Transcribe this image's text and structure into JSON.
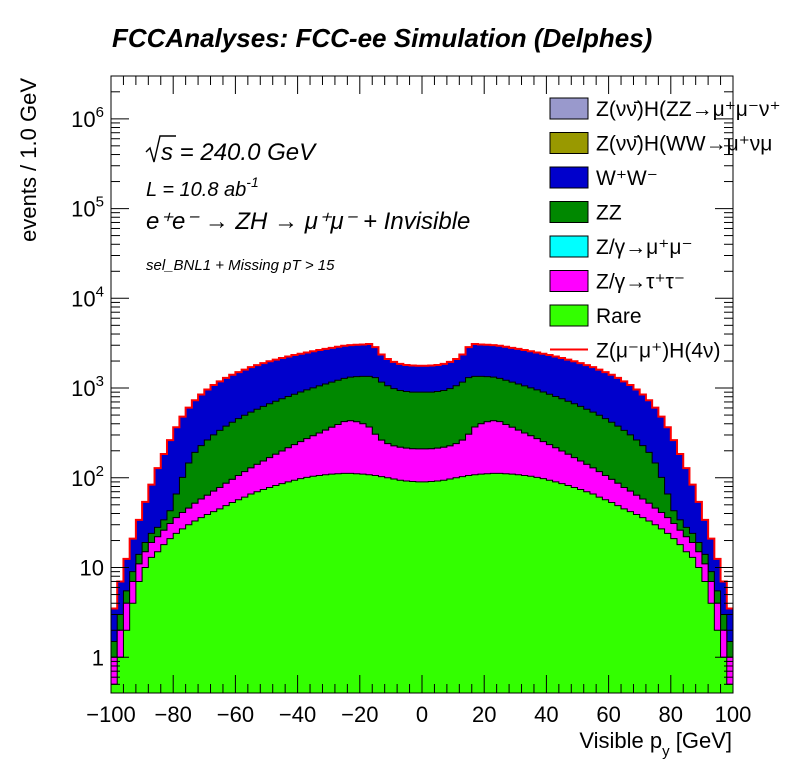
{
  "chart_data": {
    "type": "area",
    "stacked": true,
    "title": "FCCAnalyses: FCC-ee Simulation (Delphes)",
    "xlabel_main": "Visible p",
    "xlabel_sub": "y",
    "xlabel_unit": " [GeV]",
    "ylabel": "events / 1.0 GeV",
    "xlim": [
      -100,
      100
    ],
    "ylim": [
      0.4,
      3000000
    ],
    "log_y": true,
    "xticks": [
      -100,
      -80,
      -60,
      -40,
      -20,
      0,
      20,
      40,
      60,
      80,
      100
    ],
    "xtick_labels": [
      "−100",
      "−80",
      "−60",
      "−40",
      "−20",
      "0",
      "20",
      "40",
      "60",
      "80",
      "100"
    ],
    "yticks": [
      {
        "value": 1,
        "base": "1",
        "exp": ""
      },
      {
        "value": 10,
        "base": "10",
        "exp": ""
      },
      {
        "value": 100,
        "base": "10",
        "exp": "2"
      },
      {
        "value": 1000,
        "base": "10",
        "exp": "3"
      },
      {
        "value": 10000,
        "base": "10",
        "exp": "4"
      },
      {
        "value": 100000,
        "base": "10",
        "exp": "5"
      },
      {
        "value": 1000000,
        "base": "10",
        "exp": "6"
      }
    ],
    "annotations": {
      "sqrt_s": "s = 240.0 GeV",
      "lumi": "L = 10.8 ab",
      "lumi_exp": "-1",
      "process": "e⁺e⁻ → ZH → μ⁺μ⁻ + Invisible",
      "selection": "sel_BNL1 + Missing pT > 15"
    },
    "legend": [
      {
        "label": "Z(νν̄)H(ZZ→μ⁺μ⁻ν⁺",
        "color": "#9999cc",
        "kind": "box"
      },
      {
        "label": "Z(νν̄)H(WW→μ⁺νμ",
        "color": "#999900",
        "kind": "box"
      },
      {
        "label": "W⁺W⁻",
        "color": "#0000cc",
        "kind": "box"
      },
      {
        "label": "ZZ",
        "color": "#008800",
        "kind": "box"
      },
      {
        "label": "Z/γ→μ⁺μ⁻",
        "color": "#00ffff",
        "kind": "box"
      },
      {
        "label": "Z/γ→τ⁺τ⁻",
        "color": "#ff00ff",
        "kind": "box"
      },
      {
        "label": "Rare",
        "color": "#33ff00",
        "kind": "box"
      },
      {
        "label": "Z(μ⁻μ⁺)H(4ν)",
        "color": "#ff0000",
        "kind": "line"
      }
    ],
    "x": [
      -99,
      -97,
      -95,
      -93,
      -91,
      -89,
      -87,
      -85,
      -83,
      -81,
      -79,
      -77,
      -75,
      -73,
      -71,
      -69,
      -67,
      -65,
      -63,
      -61,
      -59,
      -57,
      -55,
      -53,
      -51,
      -49,
      -47,
      -45,
      -43,
      -41,
      -39,
      -37,
      -35,
      -33,
      -31,
      -29,
      -27,
      -25,
      -23,
      -21,
      -19,
      -17,
      -15,
      -13,
      -11,
      -9,
      -7,
      -5,
      -3,
      -1,
      1,
      3,
      5,
      7,
      9,
      11,
      13,
      15,
      17,
      19,
      21,
      23,
      25,
      27,
      29,
      31,
      33,
      35,
      37,
      39,
      41,
      43,
      45,
      47,
      49,
      51,
      53,
      55,
      57,
      59,
      61,
      63,
      65,
      67,
      69,
      71,
      73,
      75,
      77,
      79,
      81,
      83,
      85,
      87,
      89,
      91,
      93,
      95,
      97,
      99
    ],
    "series": [
      {
        "name": "Rare",
        "color": "#33ff00",
        "values": [
          0.5,
          1,
          2,
          4,
          7,
          10,
          13,
          15,
          18,
          21,
          24,
          27,
          30,
          33,
          36,
          39,
          42,
          45,
          49,
          53,
          57,
          61,
          66,
          70,
          74,
          78,
          82,
          86,
          90,
          94,
          98,
          101,
          104,
          106,
          108,
          110,
          111,
          112,
          112,
          111,
          110,
          108,
          106,
          103,
          100,
          97,
          94,
          92,
          91,
          90,
          90,
          91,
          92,
          94,
          97,
          100,
          103,
          106,
          108,
          110,
          111,
          112,
          112,
          111,
          110,
          108,
          106,
          104,
          101,
          98,
          94,
          90,
          86,
          82,
          78,
          74,
          70,
          66,
          61,
          57,
          53,
          49,
          45,
          42,
          39,
          36,
          33,
          30,
          27,
          24,
          21,
          18,
          15,
          13,
          10,
          7,
          4,
          2,
          1,
          0.5
        ]
      },
      {
        "name": "Z/γ→τ⁺τ⁻",
        "color": "#ff00ff",
        "values": [
          0.5,
          1,
          2,
          3,
          4,
          5,
          6,
          7,
          8,
          10,
          12,
          14,
          16,
          19,
          22,
          25,
          29,
          33,
          38,
          43,
          49,
          56,
          63,
          71,
          80,
          90,
          101,
          113,
          126,
          140,
          155,
          172,
          190,
          210,
          232,
          256,
          282,
          310,
          320,
          310,
          290,
          260,
          200,
          160,
          140,
          130,
          125,
          122,
          120,
          120,
          120,
          120,
          122,
          125,
          130,
          140,
          160,
          200,
          260,
          290,
          310,
          320,
          310,
          282,
          256,
          232,
          210,
          190,
          172,
          155,
          140,
          126,
          113,
          101,
          90,
          80,
          71,
          63,
          56,
          49,
          43,
          38,
          33,
          29,
          25,
          22,
          19,
          16,
          14,
          12,
          10,
          8,
          7,
          6,
          5,
          4,
          3,
          2,
          1,
          0.5
        ]
      },
      {
        "name": "Z/γ→μ⁺μ⁻",
        "color": "#00ffff",
        "values": [
          0,
          0,
          0,
          0,
          0,
          0,
          0,
          0,
          0,
          0,
          0,
          0,
          0,
          0,
          0,
          0,
          0,
          0,
          0,
          0,
          0,
          0,
          0,
          0,
          0,
          0,
          0,
          0,
          0,
          0,
          0,
          0,
          0,
          0,
          0,
          0,
          0,
          0,
          0,
          0,
          0,
          0,
          0,
          0,
          0,
          0,
          0,
          0,
          0,
          0,
          0,
          0,
          0,
          0,
          0,
          0,
          0,
          0,
          0,
          0,
          0,
          0,
          0,
          0,
          0,
          0,
          0,
          0,
          0,
          0,
          0,
          0,
          0,
          0,
          0,
          0,
          0,
          0,
          0,
          0,
          0,
          0,
          0,
          0,
          0,
          0,
          0,
          0,
          0,
          0,
          0,
          0,
          0,
          0,
          0,
          0,
          0,
          0,
          0,
          0
        ]
      },
      {
        "name": "ZZ",
        "color": "#008800",
        "values": [
          0.5,
          1,
          1.5,
          2,
          3,
          4,
          5,
          6,
          8,
          12,
          30,
          60,
          100,
          140,
          170,
          200,
          230,
          260,
          290,
          320,
          350,
          380,
          410,
          440,
          470,
          500,
          530,
          560,
          590,
          620,
          650,
          680,
          710,
          740,
          770,
          800,
          830,
          860,
          890,
          920,
          950,
          980,
          1000,
          900,
          820,
          760,
          720,
          700,
          690,
          690,
          690,
          690,
          700,
          720,
          760,
          820,
          900,
          1000,
          980,
          950,
          920,
          890,
          860,
          830,
          800,
          770,
          740,
          710,
          680,
          650,
          620,
          590,
          560,
          530,
          500,
          470,
          440,
          410,
          380,
          350,
          320,
          290,
          260,
          230,
          200,
          170,
          140,
          100,
          60,
          30,
          12,
          8,
          6,
          5,
          4,
          3,
          2,
          1.5,
          1,
          0.5
        ]
      },
      {
        "name": "W⁺W⁻",
        "color": "#0000cc",
        "values": [
          2,
          4,
          7,
          12,
          20,
          35,
          60,
          100,
          150,
          220,
          300,
          380,
          460,
          540,
          620,
          700,
          780,
          850,
          920,
          990,
          1050,
          1110,
          1170,
          1220,
          1270,
          1320,
          1360,
          1400,
          1440,
          1480,
          1510,
          1540,
          1570,
          1600,
          1620,
          1640,
          1660,
          1680,
          1690,
          1700,
          1710,
          1750,
          1550,
          1200,
          1050,
          970,
          920,
          890,
          880,
          870,
          870,
          880,
          890,
          920,
          970,
          1050,
          1200,
          1550,
          1750,
          1710,
          1700,
          1690,
          1680,
          1660,
          1640,
          1620,
          1600,
          1570,
          1540,
          1510,
          1480,
          1440,
          1400,
          1360,
          1320,
          1270,
          1220,
          1170,
          1110,
          1050,
          990,
          920,
          850,
          780,
          700,
          620,
          540,
          460,
          380,
          300,
          220,
          150,
          100,
          60,
          35,
          20,
          12,
          7,
          4,
          2
        ]
      },
      {
        "name": "Z(νν̄)H(WW→μ⁺νμ",
        "color": "#999900",
        "values": [
          0,
          0,
          0,
          0,
          0,
          0,
          0,
          0,
          0,
          0,
          0,
          0,
          0,
          0,
          0,
          0,
          0,
          0,
          0,
          0,
          0,
          0,
          0,
          0,
          0,
          0,
          0,
          0,
          0,
          0,
          0,
          0,
          0,
          0,
          0,
          0,
          0,
          0,
          0,
          0,
          0,
          0,
          0,
          0,
          0,
          0,
          0,
          0,
          0,
          0,
          0,
          0,
          0,
          0,
          0,
          0,
          0,
          0,
          0,
          0,
          0,
          0,
          0,
          0,
          0,
          0,
          0,
          0,
          0,
          0,
          0,
          0,
          0,
          0,
          0,
          0,
          0,
          0,
          0,
          0,
          0,
          0,
          0,
          0,
          0,
          0,
          0,
          0,
          0,
          0,
          0,
          0,
          0,
          0,
          0,
          0,
          0,
          0,
          0,
          0
        ]
      },
      {
        "name": "Z(νν̄)H(ZZ→μ⁺μ⁻ν⁺",
        "color": "#9999cc",
        "values": [
          0,
          0,
          0,
          0,
          0,
          0,
          0,
          0,
          0,
          0,
          0,
          0,
          0,
          0,
          0,
          0,
          0,
          0,
          0,
          0,
          0,
          0,
          0,
          0,
          0,
          0,
          0,
          0,
          0,
          0,
          0,
          0,
          0,
          0,
          0,
          0,
          0,
          0,
          0,
          0,
          0,
          0,
          0,
          0,
          0,
          0,
          0,
          0,
          0,
          0,
          0,
          0,
          0,
          0,
          0,
          0,
          0,
          0,
          0,
          0,
          0,
          0,
          0,
          0,
          0,
          0,
          0,
          0,
          0,
          0,
          0,
          0,
          0,
          0,
          0,
          0,
          0,
          0,
          0,
          0,
          0,
          0,
          0,
          0,
          0,
          0,
          0,
          0,
          0,
          0,
          0,
          0,
          0,
          0,
          0,
          0,
          0,
          0,
          0,
          0
        ]
      },
      {
        "name": "Z(μ⁻μ⁺)H(4ν)",
        "color": "#ff0000",
        "values": [
          0,
          0,
          0,
          0,
          0,
          0,
          0,
          0,
          0,
          0,
          0,
          0,
          0,
          0,
          0,
          0,
          0,
          0,
          0,
          0,
          0,
          0,
          0,
          0,
          0,
          0,
          0,
          0,
          0,
          0,
          0,
          0,
          0,
          0,
          0,
          0,
          0,
          0,
          0,
          0,
          0,
          0,
          0,
          0,
          0,
          0,
          0,
          0,
          0,
          0,
          0,
          0,
          0,
          0,
          0,
          0,
          0,
          0,
          0,
          0,
          0,
          0,
          0,
          0,
          0,
          0,
          0,
          0,
          0,
          0,
          0,
          0,
          0,
          0,
          0,
          0,
          0,
          0,
          0,
          0,
          0,
          0,
          0,
          0,
          0,
          0,
          0,
          0,
          0,
          0,
          0,
          0,
          0,
          0,
          0,
          0,
          0,
          0,
          0,
          0
        ]
      }
    ]
  }
}
